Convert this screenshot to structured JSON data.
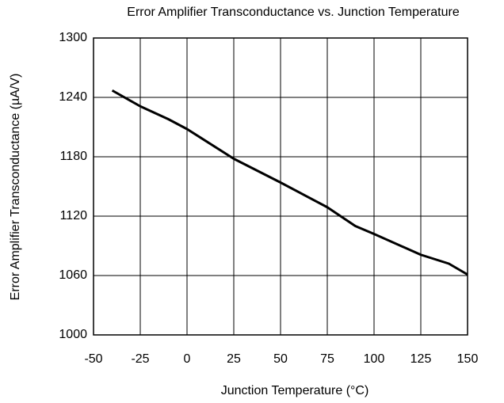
{
  "chart_data": {
    "type": "line",
    "title": "Error Amplifier Transconductance vs. Junction Temperature",
    "x_label": "Junction Temperature (°C)",
    "y_label": "Error Amplifier Transconductance (µA/V)",
    "x": [
      -40,
      -25,
      -10,
      0,
      25,
      50,
      75,
      90,
      100,
      125,
      140,
      150
    ],
    "series": [
      {
        "name": "Transconductance",
        "color": "#000000",
        "values": [
          1247,
          1231,
          1218,
          1208,
          1178,
          1154,
          1129,
          1110,
          1102,
          1081,
          1072,
          1061
        ]
      }
    ],
    "xlim": [
      -50,
      150
    ],
    "xticks": [
      -50,
      -25,
      0,
      25,
      50,
      75,
      100,
      125,
      150
    ],
    "ylim": [
      1000,
      1300
    ],
    "yticks": [
      1000,
      1060,
      1120,
      1180,
      1240,
      1300
    ],
    "grid": true
  }
}
